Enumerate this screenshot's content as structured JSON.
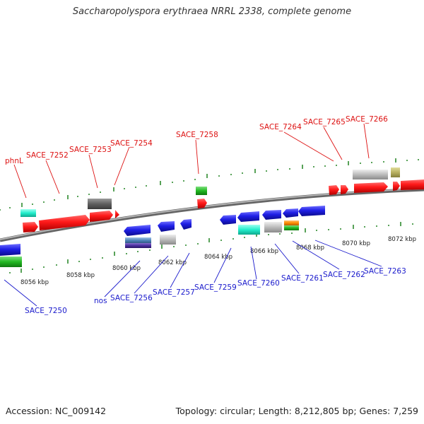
{
  "title": "Saccharopolyspora erythraea NRRL 2338, complete genome",
  "accession_text": "Accession: NC_009142",
  "topology_text": "Topology: circular; Length: 8,212,805 bp; Genes: 7,259",
  "colors": {
    "forward_label": "#dd1111",
    "reverse_label": "#1a1acc",
    "backbone": "#888888",
    "tick": "#2e8b2e"
  },
  "kbp_ticks": [
    "8056 kbp",
    "8058 kbp",
    "8060 kbp",
    "8062 kbp",
    "8064 kbp",
    "8066 kbp",
    "8068 kbp",
    "8070 kbp",
    "8072 kbp"
  ],
  "forward_genes": [
    "phnL",
    "SACE_7252",
    "SACE_7253",
    "SACE_7254",
    "SACE_7258",
    "SACE_7264",
    "SACE_7265",
    "SACE_7266"
  ],
  "reverse_genes": [
    "SACE_7250",
    "nos",
    "SACE_7256",
    "SACE_7257",
    "SACE_7259",
    "SACE_7260",
    "SACE_7261",
    "SACE_7262",
    "SACE_7263"
  ]
}
